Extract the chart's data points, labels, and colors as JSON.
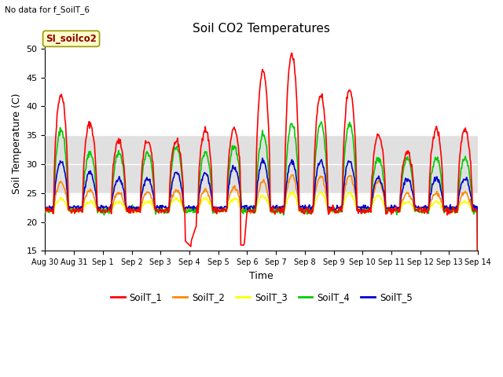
{
  "title": "Soil CO2 Temperatures",
  "subtitle": "No data for f_SoilT_6",
  "xlabel": "Time",
  "ylabel": "Soil Temperature (C)",
  "ylim": [
    15,
    52
  ],
  "yticks": [
    15,
    20,
    25,
    30,
    35,
    40,
    45,
    50
  ],
  "xlim": [
    0,
    15
  ],
  "xtick_positions": [
    0,
    1,
    2,
    3,
    4,
    5,
    6,
    7,
    8,
    9,
    10,
    11,
    12,
    13,
    14,
    15
  ],
  "xtick_labels": [
    "Aug 30",
    "Aug 31",
    "Sep 1",
    "Sep 2",
    "Sep 3",
    "Sep 4",
    "Sep 5",
    "Sep 6",
    "Sep 7",
    "Sep 8",
    "Sep 9",
    "Sep 10",
    "Sep 11",
    "Sep 12",
    "Sep 13",
    "Sep 14"
  ],
  "legend_label": "SI_soilco2",
  "colors": {
    "SoilT_1": "#ff0000",
    "SoilT_2": "#ff8800",
    "SoilT_3": "#ffff00",
    "SoilT_4": "#00cc00",
    "SoilT_5": "#0000cc"
  },
  "fig_bg_color": "#ffffff",
  "plot_bg_color": "#ffffff",
  "shaded_band": [
    25,
    35
  ],
  "shaded_band_color": "#e0e0e0"
}
